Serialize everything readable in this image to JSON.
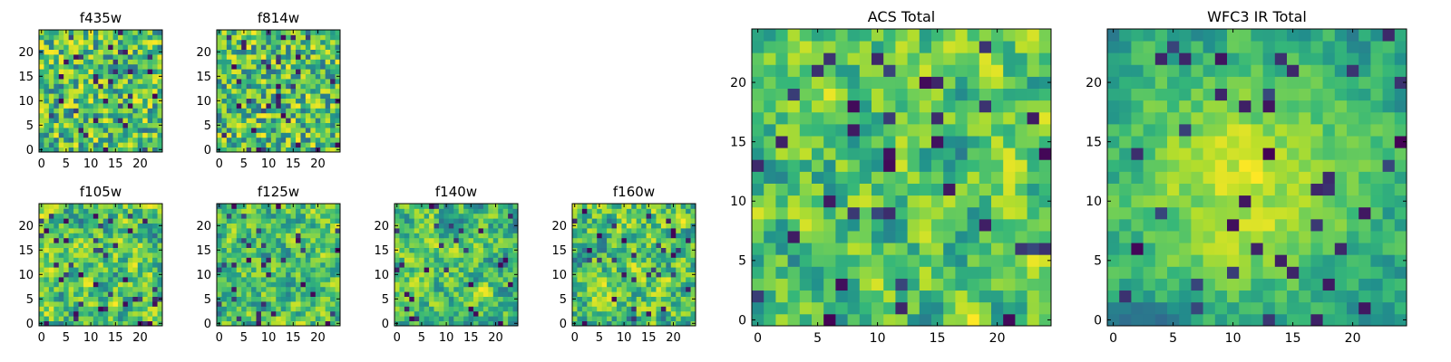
{
  "figure": {
    "background": "#ffffff"
  },
  "colormap": {
    "name": "viridis",
    "stops": [
      "#440154",
      "#31688e",
      "#21918c",
      "#35b779",
      "#6ece58",
      "#b5de2b",
      "#fde725"
    ]
  },
  "chart_data": [
    {
      "type": "heatmap",
      "title": "f435w",
      "shape": [
        25,
        25
      ],
      "xlim": [
        0,
        24
      ],
      "ylim": [
        0,
        24
      ],
      "xticks": [
        0,
        5,
        10,
        15,
        20
      ],
      "yticks": [
        0,
        5,
        10,
        15,
        20
      ],
      "pattern": "noise",
      "seed": 11
    },
    {
      "type": "heatmap",
      "title": "f814w",
      "shape": [
        25,
        25
      ],
      "xlim": [
        0,
        24
      ],
      "ylim": [
        0,
        24
      ],
      "xticks": [
        0,
        5,
        10,
        15,
        20
      ],
      "yticks": [
        0,
        5,
        10,
        15,
        20
      ],
      "pattern": "noise",
      "seed": 23
    },
    {
      "type": "heatmap",
      "title": "f105w",
      "shape": [
        25,
        25
      ],
      "xlim": [
        0,
        24
      ],
      "ylim": [
        0,
        24
      ],
      "xticks": [
        0,
        5,
        10,
        15,
        20
      ],
      "yticks": [
        0,
        5,
        10,
        15,
        20
      ],
      "pattern": "smooth",
      "seed": 37
    },
    {
      "type": "heatmap",
      "title": "f125w",
      "shape": [
        25,
        25
      ],
      "xlim": [
        0,
        24
      ],
      "ylim": [
        0,
        24
      ],
      "xticks": [
        0,
        5,
        10,
        15,
        20
      ],
      "yticks": [
        0,
        5,
        10,
        15,
        20
      ],
      "pattern": "smooth",
      "seed": 41
    },
    {
      "type": "heatmap",
      "title": "f140w",
      "shape": [
        25,
        25
      ],
      "xlim": [
        0,
        24
      ],
      "ylim": [
        0,
        24
      ],
      "xticks": [
        0,
        5,
        10,
        15,
        20
      ],
      "yticks": [
        0,
        5,
        10,
        15,
        20
      ],
      "pattern": "smooth",
      "seed": 53
    },
    {
      "type": "heatmap",
      "title": "f160w",
      "shape": [
        25,
        25
      ],
      "xlim": [
        0,
        24
      ],
      "ylim": [
        0,
        24
      ],
      "xticks": [
        0,
        5,
        10,
        15,
        20
      ],
      "yticks": [
        0,
        5,
        10,
        15,
        20
      ],
      "pattern": "smooth",
      "seed": 67
    },
    {
      "type": "heatmap",
      "title": "ACS Total",
      "shape": [
        25,
        25
      ],
      "xlim": [
        0,
        24
      ],
      "ylim": [
        0,
        24
      ],
      "xticks": [
        0,
        5,
        10,
        15,
        20
      ],
      "yticks": [
        0,
        5,
        10,
        15,
        20
      ],
      "pattern": "total",
      "seed": 79
    },
    {
      "type": "heatmap",
      "title": "WFC3 IR Total",
      "shape": [
        25,
        25
      ],
      "xlim": [
        0,
        24
      ],
      "ylim": [
        0,
        24
      ],
      "xticks": [
        0,
        5,
        10,
        15,
        20
      ],
      "yticks": [
        0,
        5,
        10,
        15,
        20
      ],
      "pattern": "total-ir",
      "seed": 97
    }
  ]
}
